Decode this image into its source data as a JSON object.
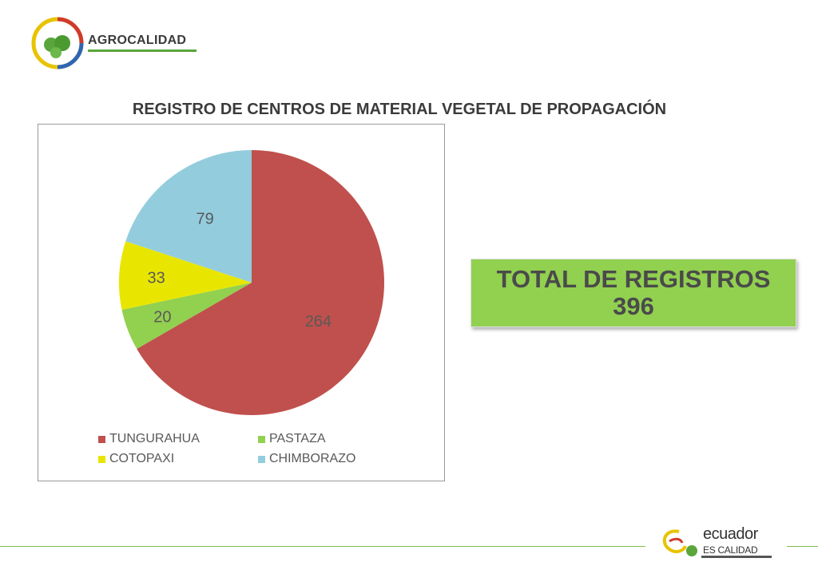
{
  "brand": {
    "name": "AGROCALIDAD",
    "green": "#5aa63b"
  },
  "chart_data": {
    "type": "pie",
    "title": "REGISTRO DE CENTROS DE MATERIAL VEGETAL DE PROPAGACIÓN",
    "categories": [
      "TUNGURAHUA",
      "PASTAZA",
      "COTOPAXI",
      "CHIMBORAZO"
    ],
    "values": [
      264,
      20,
      33,
      79
    ],
    "colors": [
      "#c0504d",
      "#92d050",
      "#e8e600",
      "#93cddd"
    ],
    "legend": "bottom",
    "data_labels": true
  },
  "total": {
    "line1": "TOTAL DE REGISTROS",
    "line2": "396"
  },
  "footer": {
    "word": "ecuador",
    "sub": "ES CALIDAD"
  }
}
